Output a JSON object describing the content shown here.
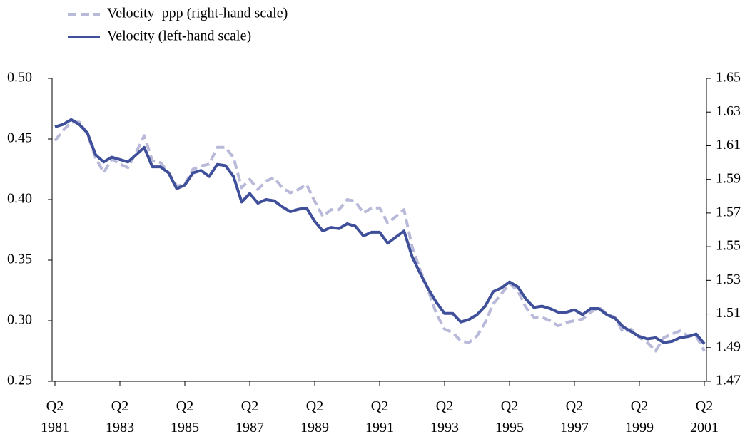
{
  "chart_data": {
    "type": "line",
    "categories": [
      "Q2 1981",
      null,
      null,
      null,
      null,
      null,
      null,
      null,
      "Q2 1983",
      null,
      null,
      null,
      null,
      null,
      null,
      null,
      "Q2 1985",
      null,
      null,
      null,
      null,
      null,
      null,
      null,
      "Q2 1987",
      null,
      null,
      null,
      null,
      null,
      null,
      null,
      "Q2 1989",
      null,
      null,
      null,
      null,
      null,
      null,
      null,
      "Q2 1991",
      null,
      null,
      null,
      null,
      null,
      null,
      null,
      "Q2 1993",
      null,
      null,
      null,
      null,
      null,
      null,
      null,
      "Q2 1995",
      null,
      null,
      null,
      null,
      null,
      null,
      null,
      "Q2 1997",
      null,
      null,
      null,
      null,
      null,
      null,
      null,
      "Q2 1999",
      null,
      null,
      null,
      null,
      null,
      null,
      null,
      "Q2 2001"
    ],
    "series": [
      {
        "name": "Velocity_ppp (right-hand scale)",
        "color": "#b9b9d9",
        "dashed": true,
        "axis": "y2",
        "values": [
          1.613,
          1.619,
          1.624,
          1.624,
          1.617,
          1.603,
          1.594,
          1.602,
          1.599,
          1.597,
          1.606,
          1.616,
          1.601,
          1.6,
          1.594,
          1.586,
          1.587,
          1.596,
          1.598,
          1.599,
          1.609,
          1.609,
          1.603,
          1.585,
          1.59,
          1.584,
          1.589,
          1.591,
          1.585,
          1.582,
          1.584,
          1.587,
          1.577,
          1.568,
          1.572,
          1.572,
          1.578,
          1.577,
          1.57,
          1.573,
          1.573,
          1.564,
          1.568,
          1.572,
          1.55,
          1.536,
          1.524,
          1.51,
          1.501,
          1.499,
          1.494,
          1.493,
          1.497,
          1.505,
          1.516,
          1.522,
          1.528,
          1.524,
          1.514,
          1.508,
          1.508,
          1.506,
          1.503,
          1.505,
          1.506,
          1.507,
          1.511,
          1.514,
          1.51,
          1.508,
          1.499,
          1.501,
          1.496,
          1.493,
          1.488,
          1.496,
          1.498,
          1.5,
          1.497,
          1.497,
          1.488
        ]
      },
      {
        "name": "Velocity (left-hand scale)",
        "color": "#3f4f9a",
        "dashed": false,
        "values": [
          0.46,
          0.462,
          0.466,
          0.462,
          0.455,
          0.437,
          0.431,
          0.435,
          0.433,
          0.431,
          0.437,
          0.443,
          0.427,
          0.427,
          0.422,
          0.409,
          0.412,
          0.422,
          0.424,
          0.419,
          0.429,
          0.428,
          0.419,
          0.398,
          0.405,
          0.397,
          0.4,
          0.399,
          0.394,
          0.39,
          0.392,
          0.393,
          0.382,
          0.374,
          0.377,
          0.376,
          0.38,
          0.378,
          0.37,
          0.373,
          0.373,
          0.364,
          0.369,
          0.374,
          0.353,
          0.339,
          0.326,
          0.315,
          0.306,
          0.306,
          0.299,
          0.301,
          0.305,
          0.312,
          0.324,
          0.327,
          0.332,
          0.328,
          0.318,
          0.311,
          0.312,
          0.31,
          0.307,
          0.307,
          0.309,
          0.305,
          0.31,
          0.31,
          0.305,
          0.302,
          0.295,
          0.291,
          0.287,
          0.285,
          0.286,
          0.282,
          0.283,
          0.286,
          0.287,
          0.289,
          0.281
        ]
      }
    ],
    "ylim": [
      0.25,
      0.5
    ],
    "yticks": [
      0.25,
      {
        "value": 0.3,
        "label": "0.30"
      },
      0.35,
      {
        "value": 0.4,
        "label": "0.40"
      },
      0.45,
      {
        "value": 0.5,
        "label": "0.50"
      }
    ],
    "y2lim": [
      1.47,
      1.65
    ],
    "y2ticks": [
      1.47,
      1.49,
      1.51,
      1.53,
      1.55,
      1.57,
      1.59,
      1.61,
      1.63,
      1.65
    ],
    "legend": "top-left",
    "grid": false
  }
}
